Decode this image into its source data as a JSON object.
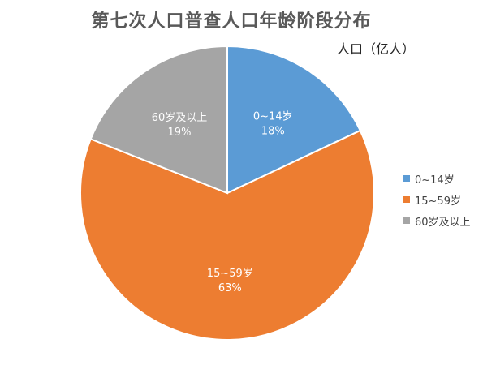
{
  "title": "第七次人口普查人口年龄阶段分布",
  "subtitle": "人口（亿人）",
  "chart_data": {
    "type": "pie",
    "title": "第七次人口普查人口年龄阶段分布",
    "unit_label": "人口（亿人）",
    "start_angle_deg": 0,
    "direction": "clockwise",
    "slices": [
      {
        "label": "0~14岁",
        "value": 18,
        "value_label": "18%",
        "color": "#5B9BD5"
      },
      {
        "label": "15~59岁",
        "value": 63,
        "value_label": "63%",
        "color": "#ED7D31"
      },
      {
        "label": "60岁及以上",
        "value": 19,
        "value_label": "19%",
        "color": "#A5A5A5"
      }
    ],
    "legend": {
      "placement": "right",
      "entries": [
        "0~14岁",
        "15~59岁",
        "60岁及以上"
      ]
    },
    "data_labels": "inside, category and percentage"
  }
}
